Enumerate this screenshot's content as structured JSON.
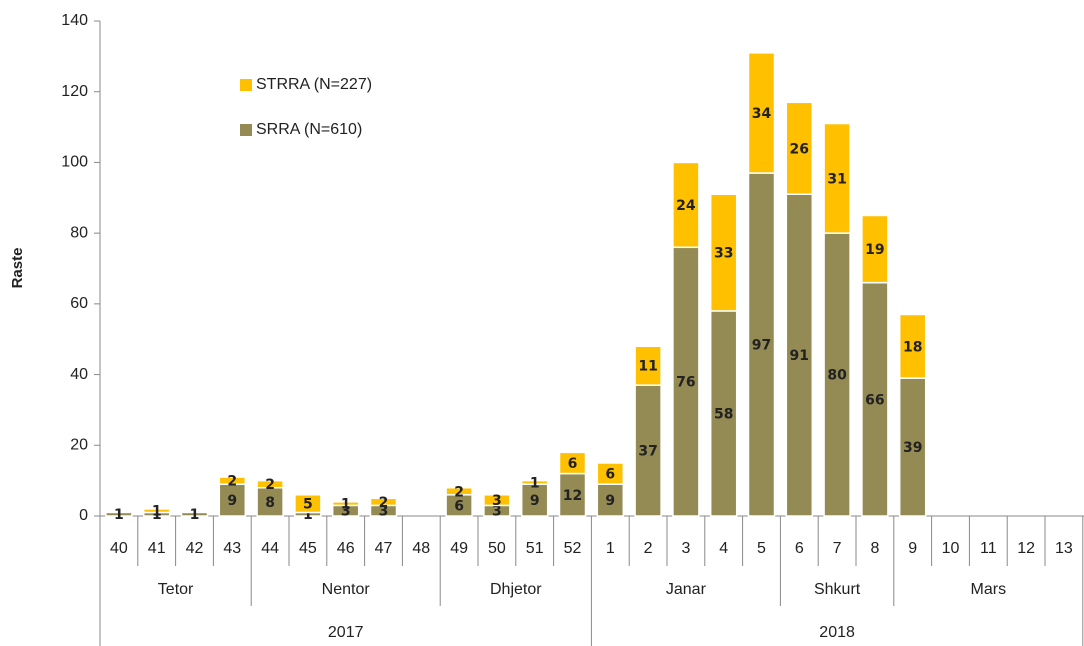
{
  "chart_data": {
    "type": "stacked_bar",
    "y_label": "Raste",
    "categories": [
      "40",
      "41",
      "42",
      "43",
      "44",
      "45",
      "46",
      "47",
      "48",
      "49",
      "50",
      "51",
      "52",
      "1",
      "2",
      "3",
      "4",
      "5",
      "6",
      "7",
      "8",
      "9",
      "10",
      "11",
      "12",
      "13"
    ],
    "months": {
      "labels": [
        "Tetor",
        "Nentor",
        "Dhjetor",
        "Janar",
        "Shkurt",
        "Mars"
      ],
      "spans": [
        4,
        5,
        4,
        5,
        3,
        5
      ]
    },
    "years": {
      "labels": [
        "2017",
        "2018"
      ],
      "spans": [
        13,
        13
      ]
    },
    "series": [
      {
        "name": "SRRA (N=610)",
        "color": "#948a54",
        "values": [
          1,
          1,
          1,
          9,
          8,
          1,
          3,
          3,
          null,
          6,
          3,
          9,
          12,
          9,
          37,
          76,
          58,
          97,
          91,
          80,
          66,
          39,
          null,
          null,
          null,
          null
        ]
      },
      {
        "name": "STRRA (N=227)",
        "color": "#ffc000",
        "values": [
          0,
          1,
          0,
          2,
          2,
          5,
          1,
          2,
          null,
          2,
          3,
          1,
          6,
          6,
          11,
          24,
          33,
          34,
          26,
          31,
          19,
          18,
          null,
          null,
          null,
          null
        ]
      }
    ],
    "ylim": [
      0,
      140
    ],
    "yticks": [
      0,
      20,
      40,
      60,
      80,
      100,
      120,
      140
    ],
    "grid": false
  }
}
